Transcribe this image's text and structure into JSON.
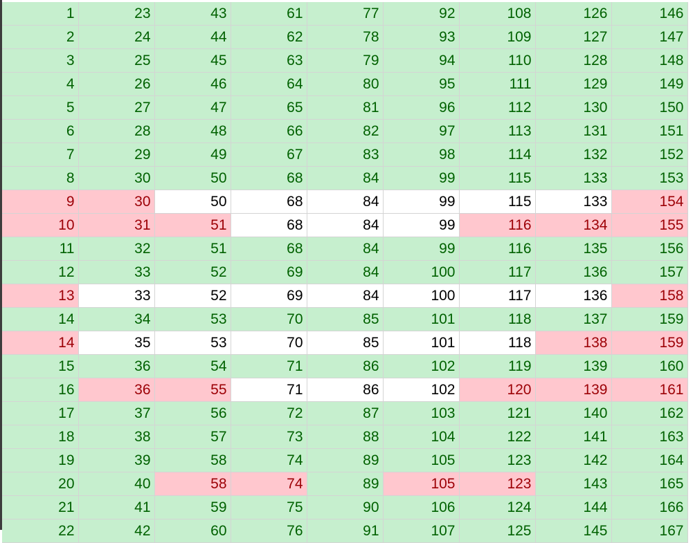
{
  "sheet": {
    "colors": {
      "green_fill": "#c6efce",
      "green_text": "#006100",
      "red_fill": "#ffc7ce",
      "red_text": "#9c0006",
      "plain_fill": "#ffffff",
      "plain_text": "#000000"
    },
    "rows": [
      {
        "cells": [
          {
            "v": "1",
            "s": "g"
          },
          {
            "v": "23",
            "s": "g"
          },
          {
            "v": "43",
            "s": "g"
          },
          {
            "v": "61",
            "s": "g"
          },
          {
            "v": "77",
            "s": "g"
          },
          {
            "v": "92",
            "s": "g"
          },
          {
            "v": "108",
            "s": "g"
          },
          {
            "v": "126",
            "s": "g"
          },
          {
            "v": "146",
            "s": "g"
          }
        ]
      },
      {
        "cells": [
          {
            "v": "2",
            "s": "g"
          },
          {
            "v": "24",
            "s": "g"
          },
          {
            "v": "44",
            "s": "g"
          },
          {
            "v": "62",
            "s": "g"
          },
          {
            "v": "78",
            "s": "g"
          },
          {
            "v": "93",
            "s": "g"
          },
          {
            "v": "109",
            "s": "g"
          },
          {
            "v": "127",
            "s": "g"
          },
          {
            "v": "147",
            "s": "g"
          }
        ]
      },
      {
        "cells": [
          {
            "v": "3",
            "s": "g"
          },
          {
            "v": "25",
            "s": "g"
          },
          {
            "v": "45",
            "s": "g"
          },
          {
            "v": "63",
            "s": "g"
          },
          {
            "v": "79",
            "s": "g"
          },
          {
            "v": "94",
            "s": "g"
          },
          {
            "v": "110",
            "s": "g"
          },
          {
            "v": "128",
            "s": "g"
          },
          {
            "v": "148",
            "s": "g"
          }
        ]
      },
      {
        "cells": [
          {
            "v": "4",
            "s": "g"
          },
          {
            "v": "26",
            "s": "g"
          },
          {
            "v": "46",
            "s": "g"
          },
          {
            "v": "64",
            "s": "g"
          },
          {
            "v": "80",
            "s": "g"
          },
          {
            "v": "95",
            "s": "g"
          },
          {
            "v": "111",
            "s": "g"
          },
          {
            "v": "129",
            "s": "g"
          },
          {
            "v": "149",
            "s": "g"
          }
        ]
      },
      {
        "cells": [
          {
            "v": "5",
            "s": "g"
          },
          {
            "v": "27",
            "s": "g"
          },
          {
            "v": "47",
            "s": "g"
          },
          {
            "v": "65",
            "s": "g"
          },
          {
            "v": "81",
            "s": "g"
          },
          {
            "v": "96",
            "s": "g"
          },
          {
            "v": "112",
            "s": "g"
          },
          {
            "v": "130",
            "s": "g"
          },
          {
            "v": "150",
            "s": "g"
          }
        ]
      },
      {
        "cells": [
          {
            "v": "6",
            "s": "g"
          },
          {
            "v": "28",
            "s": "g"
          },
          {
            "v": "48",
            "s": "g"
          },
          {
            "v": "66",
            "s": "g"
          },
          {
            "v": "82",
            "s": "g"
          },
          {
            "v": "97",
            "s": "g"
          },
          {
            "v": "113",
            "s": "g"
          },
          {
            "v": "131",
            "s": "g"
          },
          {
            "v": "151",
            "s": "g"
          }
        ]
      },
      {
        "cells": [
          {
            "v": "7",
            "s": "g"
          },
          {
            "v": "29",
            "s": "g"
          },
          {
            "v": "49",
            "s": "g"
          },
          {
            "v": "67",
            "s": "g"
          },
          {
            "v": "83",
            "s": "g"
          },
          {
            "v": "98",
            "s": "g"
          },
          {
            "v": "114",
            "s": "g"
          },
          {
            "v": "132",
            "s": "g"
          },
          {
            "v": "152",
            "s": "g"
          }
        ]
      },
      {
        "cells": [
          {
            "v": "8",
            "s": "g"
          },
          {
            "v": "30",
            "s": "g"
          },
          {
            "v": "50",
            "s": "g"
          },
          {
            "v": "68",
            "s": "g"
          },
          {
            "v": "84",
            "s": "g"
          },
          {
            "v": "99",
            "s": "g"
          },
          {
            "v": "115",
            "s": "g"
          },
          {
            "v": "133",
            "s": "g"
          },
          {
            "v": "153",
            "s": "g"
          }
        ]
      },
      {
        "cells": [
          {
            "v": "9",
            "s": "r"
          },
          {
            "v": "30",
            "s": "r"
          },
          {
            "v": "50",
            "s": "n"
          },
          {
            "v": "68",
            "s": "n"
          },
          {
            "v": "84",
            "s": "n"
          },
          {
            "v": "99",
            "s": "n"
          },
          {
            "v": "115",
            "s": "n"
          },
          {
            "v": "133",
            "s": "n"
          },
          {
            "v": "154",
            "s": "r"
          }
        ]
      },
      {
        "cells": [
          {
            "v": "10",
            "s": "r"
          },
          {
            "v": "31",
            "s": "r"
          },
          {
            "v": "51",
            "s": "r"
          },
          {
            "v": "68",
            "s": "n"
          },
          {
            "v": "84",
            "s": "n"
          },
          {
            "v": "99",
            "s": "n"
          },
          {
            "v": "116",
            "s": "r"
          },
          {
            "v": "134",
            "s": "r"
          },
          {
            "v": "155",
            "s": "r"
          }
        ]
      },
      {
        "cells": [
          {
            "v": "11",
            "s": "g"
          },
          {
            "v": "32",
            "s": "g"
          },
          {
            "v": "51",
            "s": "g"
          },
          {
            "v": "68",
            "s": "g"
          },
          {
            "v": "84",
            "s": "g"
          },
          {
            "v": "99",
            "s": "g"
          },
          {
            "v": "116",
            "s": "g"
          },
          {
            "v": "135",
            "s": "g"
          },
          {
            "v": "156",
            "s": "g"
          }
        ]
      },
      {
        "cells": [
          {
            "v": "12",
            "s": "g"
          },
          {
            "v": "33",
            "s": "g"
          },
          {
            "v": "52",
            "s": "g"
          },
          {
            "v": "69",
            "s": "g"
          },
          {
            "v": "84",
            "s": "g"
          },
          {
            "v": "100",
            "s": "g"
          },
          {
            "v": "117",
            "s": "g"
          },
          {
            "v": "136",
            "s": "g"
          },
          {
            "v": "157",
            "s": "g"
          }
        ]
      },
      {
        "cells": [
          {
            "v": "13",
            "s": "r"
          },
          {
            "v": "33",
            "s": "n"
          },
          {
            "v": "52",
            "s": "n"
          },
          {
            "v": "69",
            "s": "n"
          },
          {
            "v": "84",
            "s": "n"
          },
          {
            "v": "100",
            "s": "n"
          },
          {
            "v": "117",
            "s": "n"
          },
          {
            "v": "136",
            "s": "n"
          },
          {
            "v": "158",
            "s": "r"
          }
        ]
      },
      {
        "cells": [
          {
            "v": "14",
            "s": "g"
          },
          {
            "v": "34",
            "s": "g"
          },
          {
            "v": "53",
            "s": "g"
          },
          {
            "v": "70",
            "s": "g"
          },
          {
            "v": "85",
            "s": "g"
          },
          {
            "v": "101",
            "s": "g"
          },
          {
            "v": "118",
            "s": "g"
          },
          {
            "v": "137",
            "s": "g"
          },
          {
            "v": "159",
            "s": "g"
          }
        ]
      },
      {
        "cells": [
          {
            "v": "14",
            "s": "r"
          },
          {
            "v": "35",
            "s": "n"
          },
          {
            "v": "53",
            "s": "n"
          },
          {
            "v": "70",
            "s": "n"
          },
          {
            "v": "85",
            "s": "n"
          },
          {
            "v": "101",
            "s": "n"
          },
          {
            "v": "118",
            "s": "n"
          },
          {
            "v": "138",
            "s": "r"
          },
          {
            "v": "159",
            "s": "r"
          }
        ]
      },
      {
        "cells": [
          {
            "v": "15",
            "s": "g"
          },
          {
            "v": "36",
            "s": "g"
          },
          {
            "v": "54",
            "s": "g"
          },
          {
            "v": "71",
            "s": "g"
          },
          {
            "v": "86",
            "s": "g"
          },
          {
            "v": "102",
            "s": "g"
          },
          {
            "v": "119",
            "s": "g"
          },
          {
            "v": "139",
            "s": "g"
          },
          {
            "v": "160",
            "s": "g"
          }
        ]
      },
      {
        "cells": [
          {
            "v": "16",
            "s": "g"
          },
          {
            "v": "36",
            "s": "r"
          },
          {
            "v": "55",
            "s": "r"
          },
          {
            "v": "71",
            "s": "n"
          },
          {
            "v": "86",
            "s": "n"
          },
          {
            "v": "102",
            "s": "n"
          },
          {
            "v": "120",
            "s": "r"
          },
          {
            "v": "139",
            "s": "r"
          },
          {
            "v": "161",
            "s": "r"
          }
        ]
      },
      {
        "cells": [
          {
            "v": "17",
            "s": "g"
          },
          {
            "v": "37",
            "s": "g"
          },
          {
            "v": "56",
            "s": "g"
          },
          {
            "v": "72",
            "s": "g"
          },
          {
            "v": "87",
            "s": "g"
          },
          {
            "v": "103",
            "s": "g"
          },
          {
            "v": "121",
            "s": "g"
          },
          {
            "v": "140",
            "s": "g"
          },
          {
            "v": "162",
            "s": "g"
          }
        ]
      },
      {
        "cells": [
          {
            "v": "18",
            "s": "g"
          },
          {
            "v": "38",
            "s": "g"
          },
          {
            "v": "57",
            "s": "g"
          },
          {
            "v": "73",
            "s": "g"
          },
          {
            "v": "88",
            "s": "g"
          },
          {
            "v": "104",
            "s": "g"
          },
          {
            "v": "122",
            "s": "g"
          },
          {
            "v": "141",
            "s": "g"
          },
          {
            "v": "163",
            "s": "g"
          }
        ]
      },
      {
        "cells": [
          {
            "v": "19",
            "s": "g"
          },
          {
            "v": "39",
            "s": "g"
          },
          {
            "v": "58",
            "s": "g"
          },
          {
            "v": "74",
            "s": "g"
          },
          {
            "v": "89",
            "s": "g"
          },
          {
            "v": "105",
            "s": "g"
          },
          {
            "v": "123",
            "s": "g"
          },
          {
            "v": "142",
            "s": "g"
          },
          {
            "v": "164",
            "s": "g"
          }
        ]
      },
      {
        "cells": [
          {
            "v": "20",
            "s": "g"
          },
          {
            "v": "40",
            "s": "g"
          },
          {
            "v": "58",
            "s": "r"
          },
          {
            "v": "74",
            "s": "r"
          },
          {
            "v": "89",
            "s": "g"
          },
          {
            "v": "105",
            "s": "r"
          },
          {
            "v": "123",
            "s": "r"
          },
          {
            "v": "143",
            "s": "g"
          },
          {
            "v": "165",
            "s": "g"
          }
        ]
      },
      {
        "cells": [
          {
            "v": "21",
            "s": "g"
          },
          {
            "v": "41",
            "s": "g"
          },
          {
            "v": "59",
            "s": "g"
          },
          {
            "v": "75",
            "s": "g"
          },
          {
            "v": "90",
            "s": "g"
          },
          {
            "v": "106",
            "s": "g"
          },
          {
            "v": "124",
            "s": "g"
          },
          {
            "v": "144",
            "s": "g"
          },
          {
            "v": "166",
            "s": "g"
          }
        ]
      },
      {
        "cells": [
          {
            "v": "22",
            "s": "g"
          },
          {
            "v": "42",
            "s": "g"
          },
          {
            "v": "60",
            "s": "g"
          },
          {
            "v": "76",
            "s": "g"
          },
          {
            "v": "91",
            "s": "g"
          },
          {
            "v": "107",
            "s": "g"
          },
          {
            "v": "125",
            "s": "g"
          },
          {
            "v": "145",
            "s": "g"
          },
          {
            "v": "167",
            "s": "g"
          }
        ]
      }
    ]
  }
}
